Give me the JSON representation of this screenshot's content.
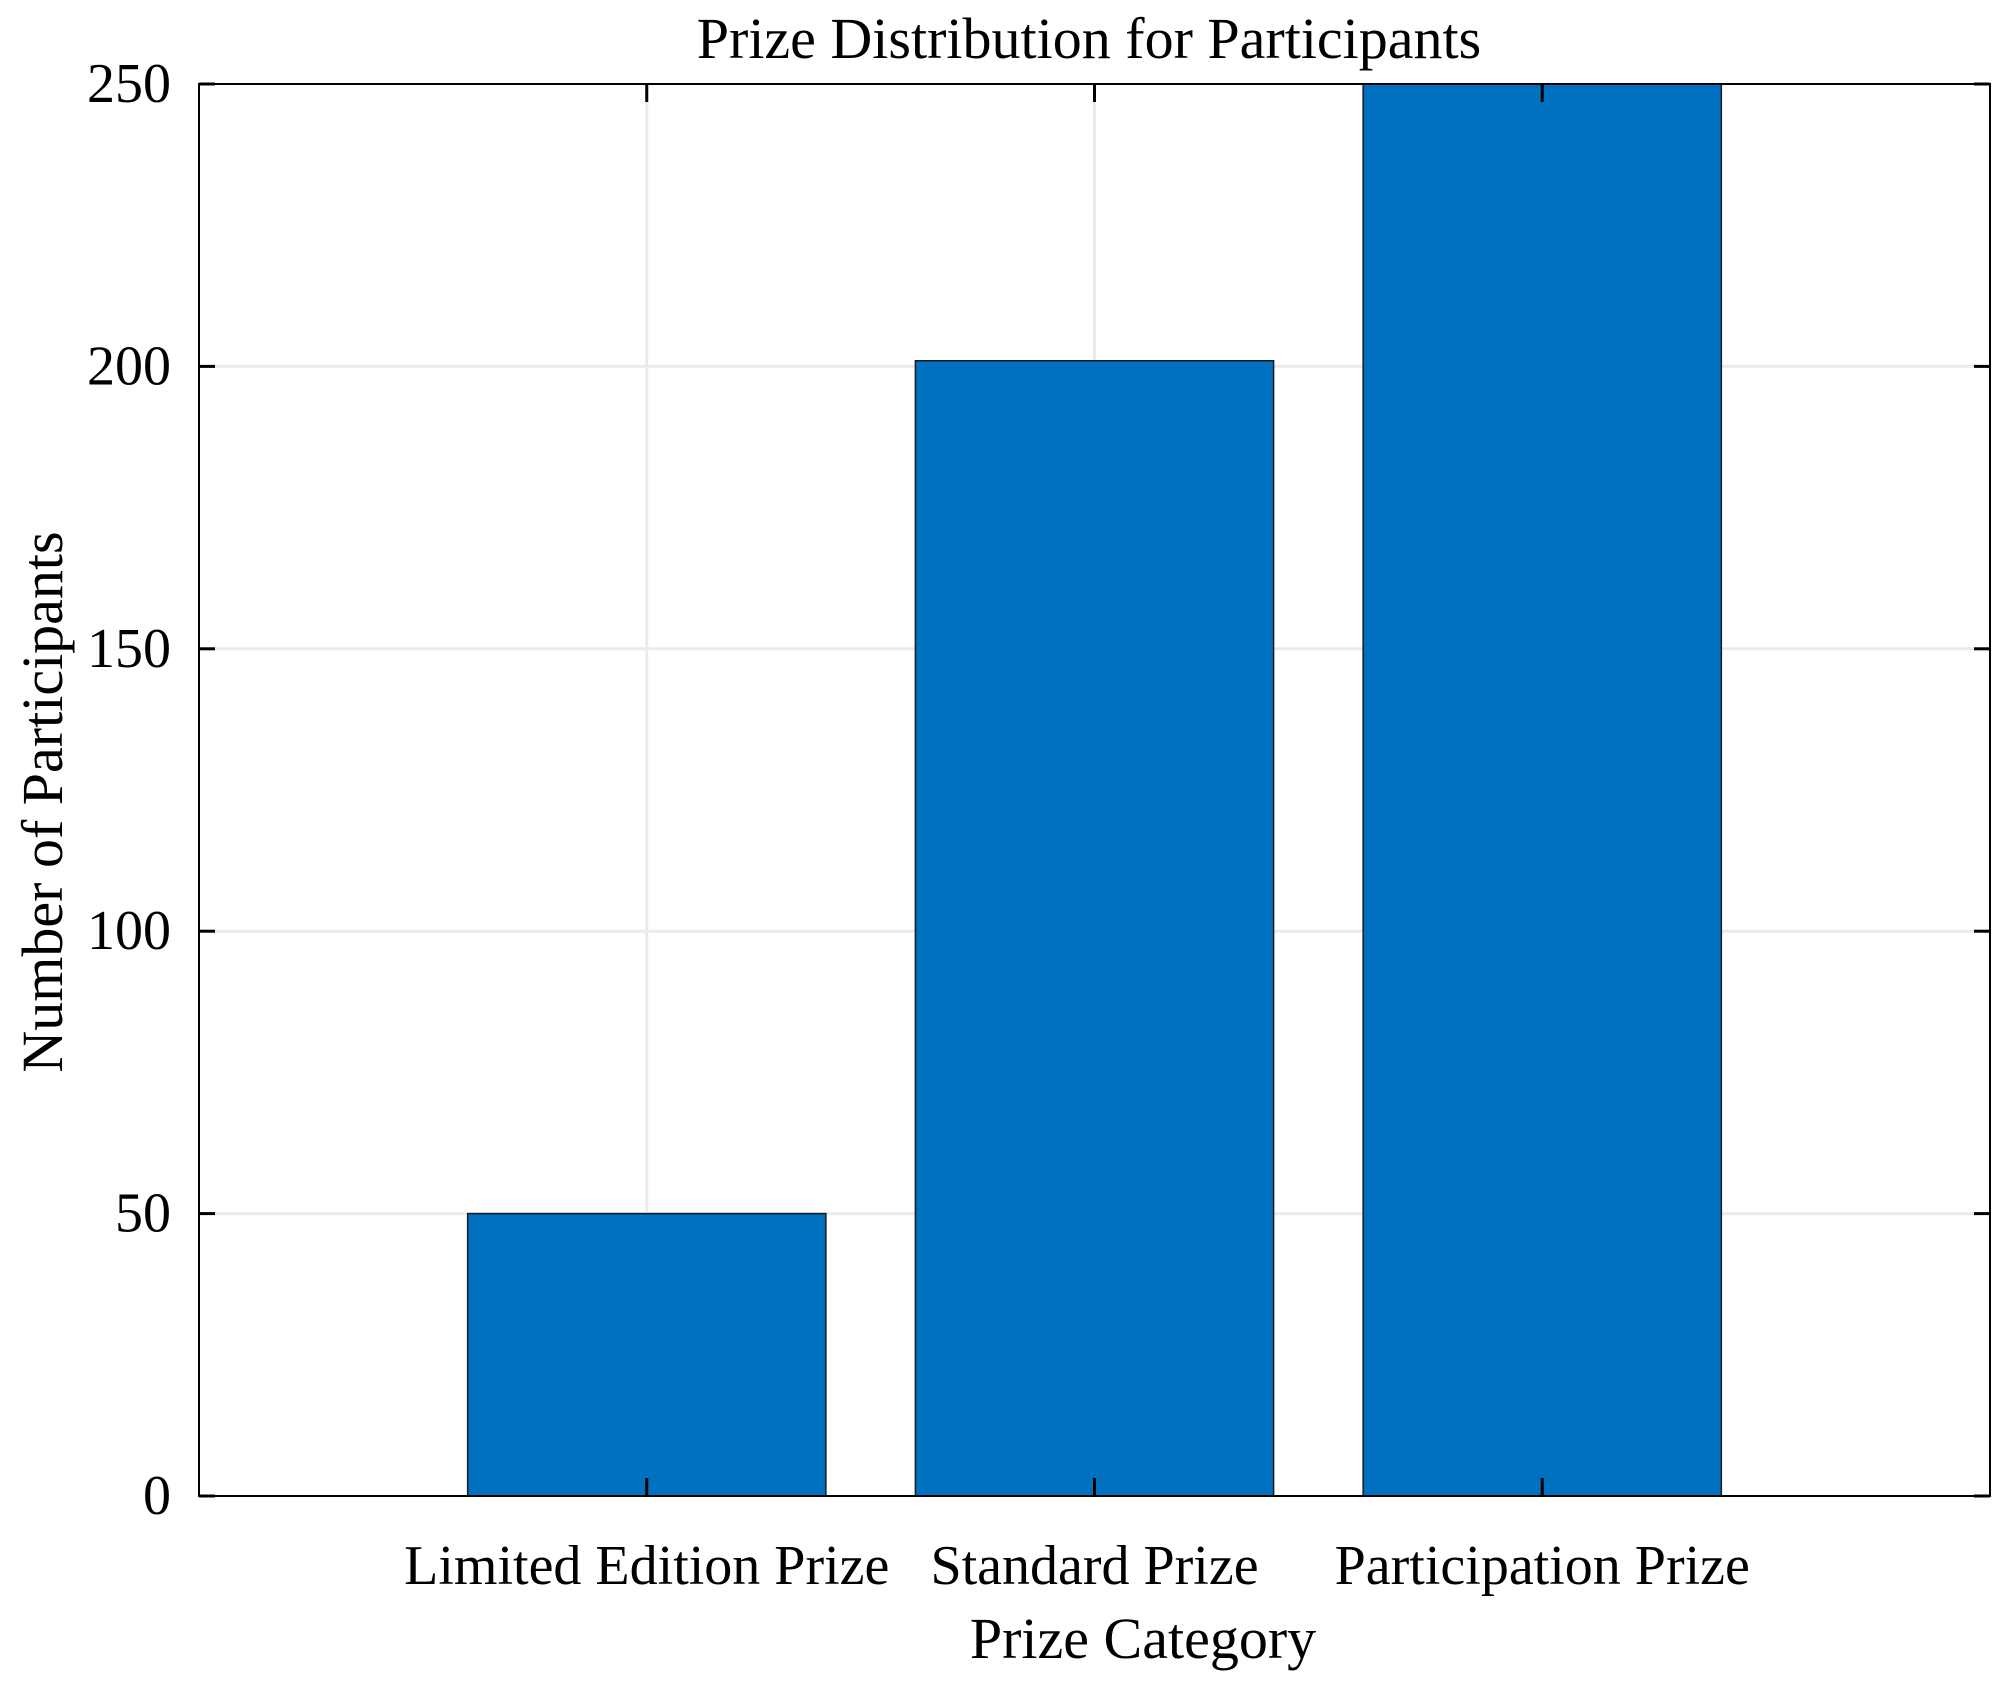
{
  "chart_data": {
    "type": "bar",
    "title": "Prize Distribution for Participants",
    "xlabel": "Prize Category",
    "ylabel": "Number of Participants",
    "categories": [
      "Limited Edition Prize",
      "Standard Prize",
      "Participation Prize"
    ],
    "values": [
      50,
      201,
      250
    ],
    "ylim": [
      0,
      250
    ],
    "yticks": [
      "0",
      "50",
      "100",
      "150",
      "200",
      "250"
    ],
    "grid": true,
    "bar_color": "#0070C0",
    "bar_edge_color": "#1a1a1a",
    "grid_color": "#ebebeb"
  }
}
